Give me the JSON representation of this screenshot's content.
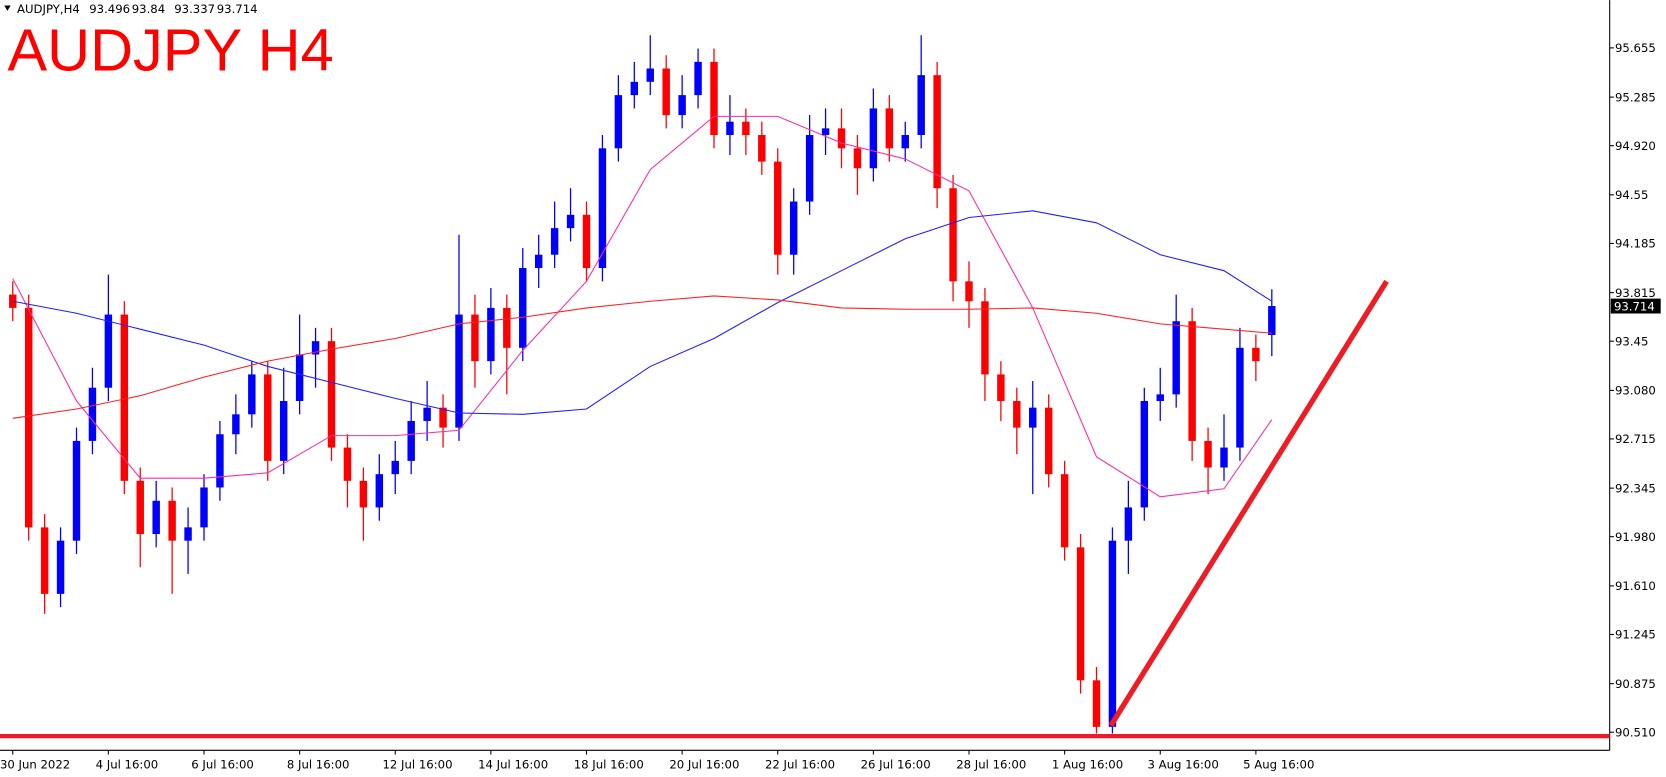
{
  "chart_data": {
    "type": "candlestick",
    "title": "AUDJPY H4",
    "header_symbol": "AUDJPY,H4",
    "categories": [
      "30 Jun 2022",
      null,
      null,
      null,
      null,
      null,
      "4 Jul 16:00",
      null,
      null,
      null,
      null,
      null,
      "6 Jul 16:00",
      null,
      null,
      null,
      null,
      null,
      "8 Jul 16:00",
      null,
      null,
      null,
      null,
      null,
      "12 Jul 16:00",
      null,
      null,
      null,
      null,
      null,
      "14 Jul 16:00",
      null,
      null,
      null,
      null,
      null,
      "18 Jul 16:00",
      null,
      null,
      null,
      null,
      null,
      "20 Jul 16:00",
      null,
      null,
      null,
      null,
      null,
      "22 Jul 16:00",
      null,
      null,
      null,
      null,
      null,
      "26 Jul 16:00",
      null,
      null,
      null,
      null,
      null,
      "28 Jul 16:00",
      null,
      null,
      null,
      null,
      null,
      "1 Aug 16:00",
      null,
      null,
      null,
      null,
      null,
      "3 Aug 16:00",
      null,
      null,
      null,
      null,
      null,
      "5 Aug 16:00",
      null
    ],
    "xlim": [
      -0.8,
      100.2
    ],
    "ylim": [
      90.374,
      96.014
    ],
    "yticks": [
      95.655,
      95.285,
      {
        "value": 94.92,
        "label": "94.920"
      },
      94.55,
      94.185,
      93.815,
      93.45,
      {
        "value": 93.08,
        "label": "93.080"
      },
      92.715,
      92.345,
      {
        "value": 91.98,
        "label": "91.980"
      },
      {
        "value": 91.61,
        "label": "91.610"
      },
      91.245,
      90.875,
      {
        "value": 90.51,
        "label": "90.510"
      }
    ],
    "series": [
      {
        "type": "candlestick",
        "up_color": "#0000ff",
        "down_color": "#ff0000",
        "open": [
          93.8,
          93.7,
          92.05,
          91.55,
          91.95,
          92.7,
          93.1,
          93.65,
          92.4,
          92.0,
          92.25,
          91.95,
          92.05,
          92.35,
          92.75,
          92.9,
          93.2,
          92.55,
          93.0,
          93.35,
          93.45,
          92.65,
          92.4,
          92.2,
          92.45,
          92.55,
          92.85,
          92.95,
          92.8,
          93.65,
          93.3,
          93.7,
          93.4,
          94.0,
          94.1,
          94.3,
          94.4,
          94.0,
          94.9,
          95.3,
          95.4,
          95.5,
          95.15,
          95.3,
          95.55,
          95.0,
          95.1,
          95.0,
          94.8,
          94.1,
          94.5,
          95.0,
          95.05,
          94.9,
          94.75,
          95.2,
          94.9,
          95.0,
          95.45,
          94.6,
          93.9,
          93.75,
          93.2,
          93.0,
          92.8,
          92.95,
          92.45,
          91.9,
          90.9,
          90.55,
          91.95,
          92.2,
          93.0,
          93.05,
          93.6,
          92.7,
          92.5,
          92.65,
          93.4,
          93.496
        ],
        "high": [
          93.9,
          93.8,
          92.15,
          92.05,
          92.8,
          93.25,
          93.95,
          93.75,
          92.5,
          92.4,
          92.35,
          92.2,
          92.45,
          92.85,
          93.05,
          93.3,
          93.3,
          93.25,
          93.65,
          93.55,
          93.55,
          92.75,
          92.5,
          92.6,
          92.7,
          93.0,
          93.15,
          93.05,
          94.25,
          93.8,
          93.85,
          93.8,
          94.15,
          94.25,
          94.5,
          94.6,
          94.5,
          95.0,
          95.45,
          95.55,
          95.75,
          95.6,
          95.45,
          95.65,
          95.65,
          95.3,
          95.2,
          95.1,
          94.9,
          94.6,
          95.15,
          95.2,
          95.2,
          95.0,
          95.35,
          95.3,
          95.1,
          95.75,
          95.55,
          94.7,
          94.05,
          93.85,
          93.3,
          93.1,
          93.15,
          93.05,
          92.55,
          92.0,
          91.0,
          92.05,
          92.4,
          93.1,
          93.25,
          93.8,
          93.7,
          92.8,
          92.9,
          93.55,
          93.5,
          93.84
        ],
        "low": [
          93.6,
          91.95,
          91.4,
          91.45,
          91.85,
          92.6,
          93.0,
          92.3,
          91.75,
          91.9,
          91.55,
          91.7,
          91.95,
          92.25,
          92.6,
          92.8,
          92.4,
          92.45,
          92.9,
          93.1,
          92.55,
          92.2,
          91.95,
          92.1,
          92.3,
          92.45,
          92.7,
          92.65,
          92.7,
          93.1,
          93.2,
          93.05,
          93.3,
          93.85,
          94.0,
          94.2,
          93.9,
          93.9,
          94.8,
          95.2,
          95.3,
          95.05,
          95.05,
          95.2,
          94.9,
          94.85,
          94.85,
          94.7,
          93.95,
          93.95,
          94.4,
          94.85,
          94.75,
          94.55,
          94.65,
          94.8,
          94.8,
          94.9,
          94.45,
          93.75,
          93.55,
          93.0,
          92.85,
          92.6,
          92.3,
          92.35,
          91.8,
          90.8,
          90.5,
          90.5,
          91.7,
          92.1,
          92.85,
          92.95,
          92.55,
          92.3,
          92.4,
          92.55,
          93.15,
          93.337
        ],
        "close": [
          93.7,
          92.05,
          91.55,
          91.95,
          92.7,
          93.1,
          93.65,
          92.4,
          92.0,
          92.25,
          91.95,
          92.05,
          92.35,
          92.75,
          92.9,
          93.2,
          92.55,
          93.0,
          93.35,
          93.45,
          92.65,
          92.4,
          92.2,
          92.45,
          92.55,
          92.85,
          92.95,
          92.8,
          93.65,
          93.3,
          93.7,
          93.4,
          94.0,
          94.1,
          94.3,
          94.4,
          94.0,
          94.9,
          95.3,
          95.4,
          95.5,
          95.15,
          95.3,
          95.55,
          95.0,
          95.1,
          95.0,
          94.8,
          94.1,
          94.5,
          95.0,
          95.05,
          94.9,
          94.75,
          95.2,
          94.9,
          95.0,
          95.45,
          94.6,
          93.9,
          93.75,
          93.2,
          93.0,
          92.8,
          92.95,
          92.45,
          91.9,
          90.9,
          90.55,
          91.95,
          92.2,
          93.0,
          93.05,
          93.6,
          92.7,
          92.5,
          92.65,
          93.4,
          93.3,
          93.714
        ]
      },
      {
        "type": "line",
        "color": "#ff2ba0",
        "x": [
          0,
          4,
          8,
          12,
          16,
          20,
          24,
          28,
          32,
          36,
          40,
          44,
          48,
          52,
          56,
          60,
          64,
          68,
          72,
          76,
          79
        ],
        "values": [
          93.92,
          93.0,
          92.42,
          92.42,
          92.46,
          92.74,
          92.74,
          92.78,
          93.38,
          93.9,
          94.74,
          95.14,
          95.14,
          94.94,
          94.82,
          94.58,
          93.7,
          92.58,
          92.28,
          92.34,
          92.86
        ]
      },
      {
        "type": "line",
        "color": "#1f1fff",
        "x": [
          0,
          4,
          8,
          12,
          16,
          20,
          24,
          28,
          32,
          36,
          40,
          44,
          48,
          52,
          56,
          60,
          64,
          68,
          72,
          76,
          79
        ],
        "values": [
          93.75,
          93.66,
          93.54,
          93.42,
          93.26,
          93.14,
          93.02,
          92.91,
          92.9,
          92.94,
          93.26,
          93.47,
          93.74,
          93.98,
          94.22,
          94.38,
          94.43,
          94.34,
          94.1,
          93.98,
          93.75
        ]
      },
      {
        "type": "line",
        "color": "#ff2020",
        "x": [
          0,
          4,
          8,
          12,
          16,
          20,
          24,
          28,
          32,
          36,
          40,
          44,
          48,
          52,
          56,
          60,
          64,
          68,
          72,
          76,
          79
        ],
        "values": [
          92.87,
          92.94,
          93.04,
          93.18,
          93.3,
          93.39,
          93.47,
          93.58,
          93.63,
          93.7,
          93.75,
          93.79,
          93.76,
          93.7,
          93.69,
          93.69,
          93.7,
          93.66,
          93.58,
          93.54,
          93.51
        ]
      }
    ],
    "support_level": 90.48,
    "trendline": {
      "x": [
        68.9,
        86.2
      ],
      "y": [
        90.56,
        93.9
      ],
      "color": "#ee1c25"
    }
  }
}
